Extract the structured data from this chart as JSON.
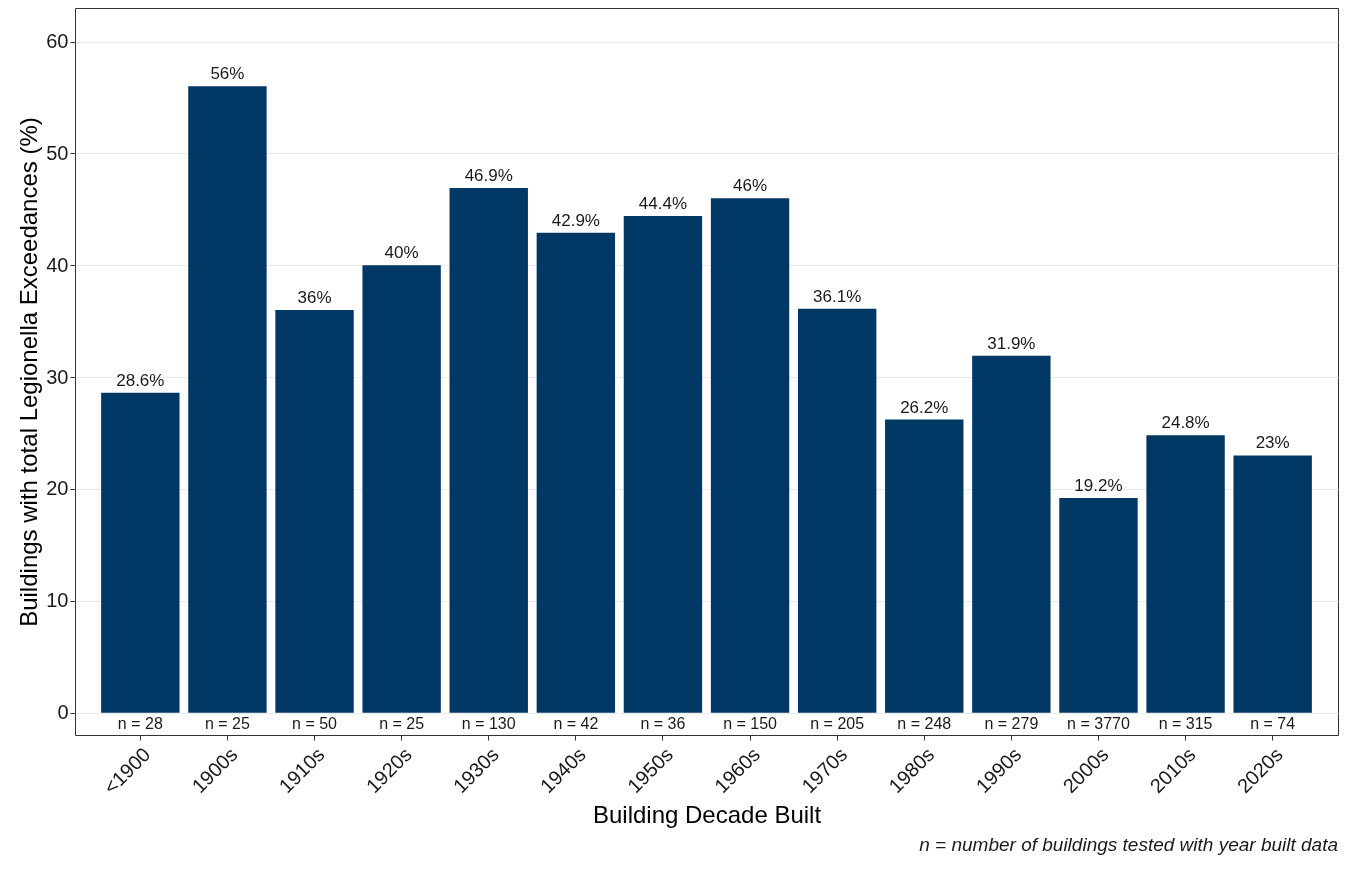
{
  "chart_data": {
    "type": "bar",
    "ylabel": "Buildings with total  Legionella Exceedances (%)",
    "xlabel": "Building Decade Built",
    "categories": [
      "<1900",
      "1900s",
      "1910s",
      "1920s",
      "1930s",
      "1940s",
      "1950s",
      "1960s",
      "1970s",
      "1980s",
      "1990s",
      "2000s",
      "2010s",
      "2020s"
    ],
    "values": [
      28.6,
      56,
      36,
      40,
      46.9,
      42.9,
      44.4,
      46,
      36.1,
      26.2,
      31.9,
      19.2,
      24.8,
      23
    ],
    "value_labels": [
      "28.6%",
      "56%",
      "36%",
      "40%",
      "46.9%",
      "42.9%",
      "44.4%",
      "46%",
      "36.1%",
      "26.2%",
      "31.9%",
      "19.2%",
      "24.8%",
      "23%"
    ],
    "color": "#003865",
    "ylim": [
      -2,
      63
    ],
    "yticks": [
      0,
      10,
      20,
      30,
      40,
      50,
      60
    ],
    "grid": "y",
    "annotations": [
      "n = 28",
      "n = 25",
      "n = 50",
      "n = 25",
      "n = 130",
      "n = 42",
      "n = 36",
      "n = 150",
      "n = 205",
      "n = 248",
      "n = 279",
      "n = 3770",
      "n = 315",
      "n = 74",
      "n = number of buildings tested with year built data"
    ]
  }
}
